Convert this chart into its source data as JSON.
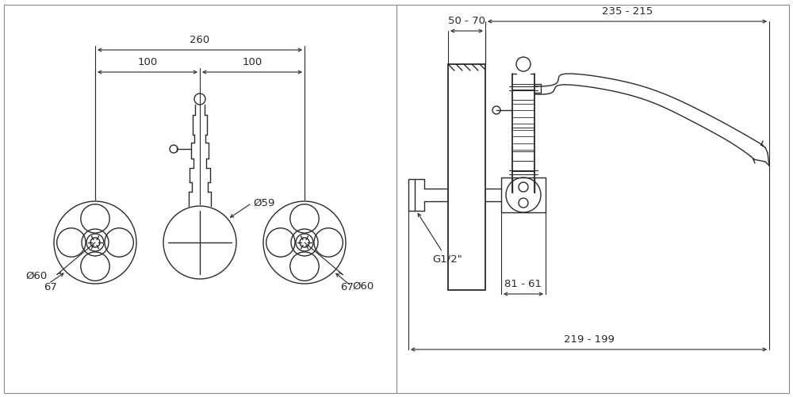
{
  "bg_color": "#ffffff",
  "line_color": "#2a2a2a",
  "text_color": "#2a2a2a",
  "figsize": [
    10.0,
    5.01
  ],
  "dpi": 100,
  "left_panel": {
    "dim_260": "260",
    "dim_100_left": "100",
    "dim_100_right": "100",
    "dim_d60_left": "Ø60",
    "dim_d59": "Ø59",
    "dim_d60_right": "Ø60",
    "dim_67_left": "67",
    "dim_67_right": "67"
  },
  "right_panel": {
    "dim_50_70": "50 - 70",
    "dim_235_215": "235 - 215",
    "dim_81_61": "81 - 61",
    "dim_219_199": "219 - 199",
    "label_g12": "G1/2\""
  }
}
